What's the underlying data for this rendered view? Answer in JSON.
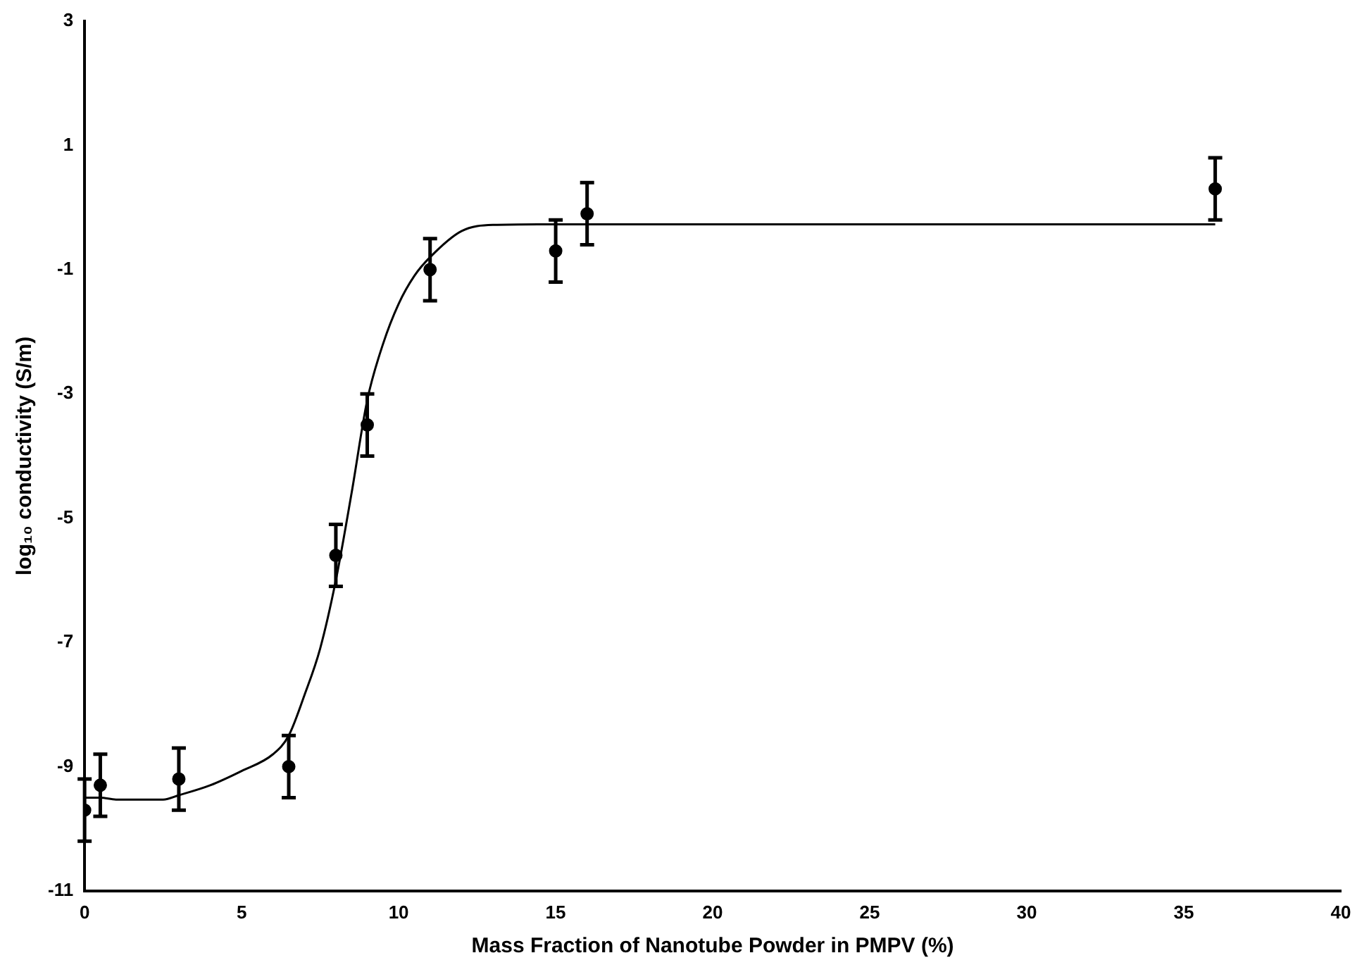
{
  "chart_data": {
    "type": "scatter",
    "xlabel": "Mass Fraction of Nanotube Powder in PMPV (%)",
    "ylabel": "log₁₀ conductivity (S/m)",
    "xlim": [
      0,
      40
    ],
    "xticks": [
      0,
      5,
      10,
      15,
      20,
      25,
      30,
      35,
      40
    ],
    "ylim": [
      -11,
      3
    ],
    "yticks": [
      -11,
      -9,
      -7,
      -5,
      -3,
      -1,
      1,
      3
    ],
    "grid": false,
    "legend": false,
    "series": [
      {
        "type": "scatter",
        "color": "#000000",
        "marker": "circle",
        "x": [
          0,
          0.5,
          3,
          6.5,
          8,
          9,
          11,
          15,
          16,
          36
        ],
        "values": [
          -9.7,
          -9.3,
          -9.2,
          -9.0,
          -5.6,
          -3.5,
          -1.0,
          -0.7,
          -0.1,
          0.3
        ],
        "errors": [
          0.5,
          0.5,
          0.5,
          0.5,
          0.5,
          0.5,
          0.5,
          0.5,
          0.5,
          0.5
        ]
      },
      {
        "type": "line",
        "color": "#000000",
        "marker": "none",
        "line_style": "solid",
        "x": [
          0,
          0.5,
          1,
          2.5,
          3,
          4,
          5,
          6,
          6.5,
          7,
          7.5,
          8,
          8.5,
          9,
          9.5,
          10,
          10.5,
          11,
          12,
          13,
          15,
          36
        ],
        "values": [
          -9.5,
          -9.5,
          -9.53,
          -9.53,
          -9.46,
          -9.3,
          -9.07,
          -8.8,
          -8.5,
          -7.85,
          -7.1,
          -6.0,
          -4.6,
          -3.1,
          -2.2,
          -1.55,
          -1.1,
          -0.8,
          -0.38,
          -0.28,
          -0.27,
          -0.27
        ]
      }
    ]
  }
}
